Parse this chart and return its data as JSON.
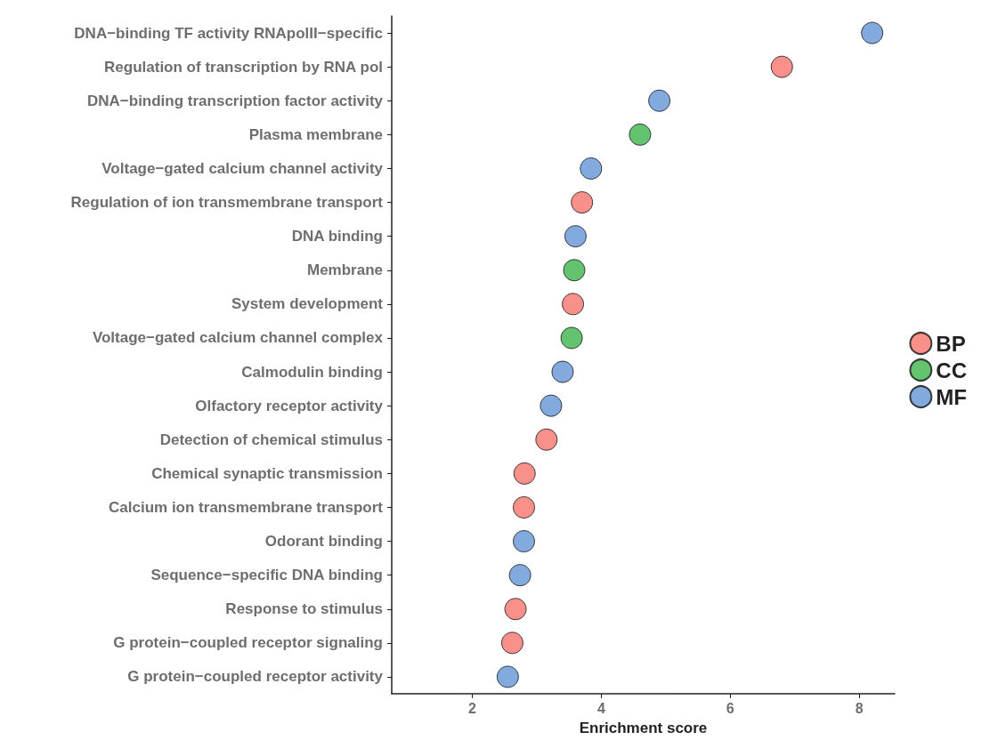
{
  "chart_data": {
    "type": "scatter",
    "xlabel": "Enrichment score",
    "categories": [
      "DNA−binding TF activity RNApolII−specific",
      "Regulation of transcription by RNA pol",
      "DNA−binding transcription factor activity",
      "Plasma membrane",
      "Voltage−gated calcium channel activity",
      "Regulation of ion transmembrane transport",
      "DNA binding",
      "Membrane",
      "System development",
      "Voltage−gated calcium channel complex",
      "Calmodulin binding",
      "Olfactory receptor activity",
      "Detection of chemical stimulus",
      "Chemical synaptic transmission",
      "Calcium ion transmembrane transport",
      "Odorant binding",
      "Sequence−specific DNA binding",
      "Response to stimulus",
      "G protein−coupled receptor signaling",
      "G protein−coupled receptor activity"
    ],
    "series": [
      {
        "name": "BP",
        "color": "#f8766d",
        "values": [
          null,
          6.8,
          null,
          null,
          null,
          3.7,
          null,
          null,
          3.56,
          null,
          null,
          null,
          3.15,
          2.81,
          2.8,
          null,
          null,
          2.67,
          2.62,
          null
        ]
      },
      {
        "name": "CC",
        "color": "#3cb44a",
        "values": [
          null,
          null,
          null,
          4.6,
          null,
          null,
          null,
          3.58,
          null,
          3.54,
          null,
          null,
          null,
          null,
          null,
          null,
          null,
          null,
          null,
          null
        ]
      },
      {
        "name": "MF",
        "color": "#6495d6",
        "values": [
          8.2,
          null,
          4.9,
          null,
          3.84,
          null,
          3.6,
          null,
          null,
          null,
          3.4,
          3.22,
          null,
          null,
          null,
          2.8,
          2.74,
          null,
          null,
          2.55
        ]
      }
    ],
    "orientation": "horizontal",
    "xlim": [
      0.75,
      8.55
    ],
    "xticks": [
      2,
      4,
      6,
      8
    ],
    "grid": false,
    "legend": "right",
    "marker": "circle"
  }
}
